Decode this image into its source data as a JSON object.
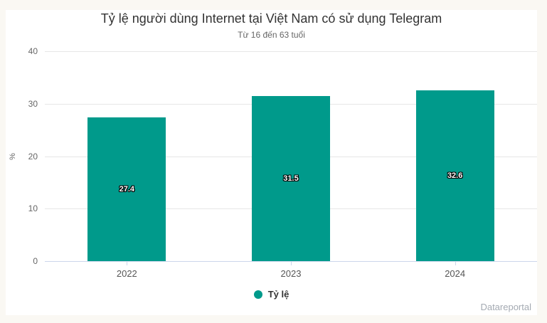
{
  "page": {
    "background_color": "#faf8f3",
    "card_color": "#ffffff"
  },
  "chart_data": {
    "type": "bar",
    "title": "Tỷ lệ người dùng Internet tại Việt Nam có sử dụng Telegram",
    "subtitle": "Từ 16 đến 63 tuổi",
    "categories": [
      "2022",
      "2023",
      "2024"
    ],
    "series": [
      {
        "name": "Tỷ lệ",
        "values": [
          27.4,
          31.5,
          32.6
        ]
      }
    ],
    "data_labels": [
      "27.4",
      "31.5",
      "32.6"
    ],
    "xlabel": "",
    "ylabel": "%",
    "ylim": [
      0,
      40
    ],
    "yticks": [
      0,
      10,
      20,
      30,
      40
    ],
    "grid": true,
    "legend_position": "bottom",
    "bar_color": "#009a8b",
    "grid_color": "#e6e6e6",
    "axis_color": "#ccd6eb"
  },
  "credit": {
    "label": "Datareportal"
  }
}
